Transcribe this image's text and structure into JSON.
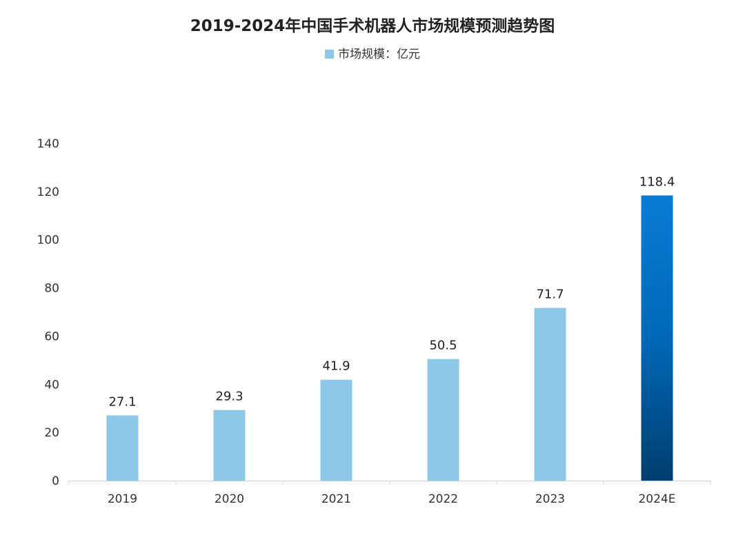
{
  "chart_data": {
    "type": "bar",
    "title": "2019-2024年中国手术机器人市场规模预测趋势图",
    "legend": [
      {
        "name": "市场规模：亿元",
        "color": "#8ec8e8"
      }
    ],
    "legend_position": "top",
    "categories": [
      "2019",
      "2020",
      "2021",
      "2022",
      "2023",
      "2024E"
    ],
    "series": [
      {
        "name": "市场规模：亿元",
        "values": [
          27.1,
          29.3,
          41.9,
          50.5,
          71.7,
          118.4
        ]
      }
    ],
    "data_labels": [
      "27.1",
      "29.3",
      "41.9",
      "50.5",
      "71.7",
      "118.4"
    ],
    "ylim": [
      0,
      140
    ],
    "yticks": [
      0,
      20,
      40,
      60,
      80,
      100,
      120,
      140
    ],
    "grid": false,
    "colors": {
      "actual": "#8ec8e8",
      "forecast_top": "#0a7bd4",
      "forecast_bottom": "#003e6e"
    }
  }
}
